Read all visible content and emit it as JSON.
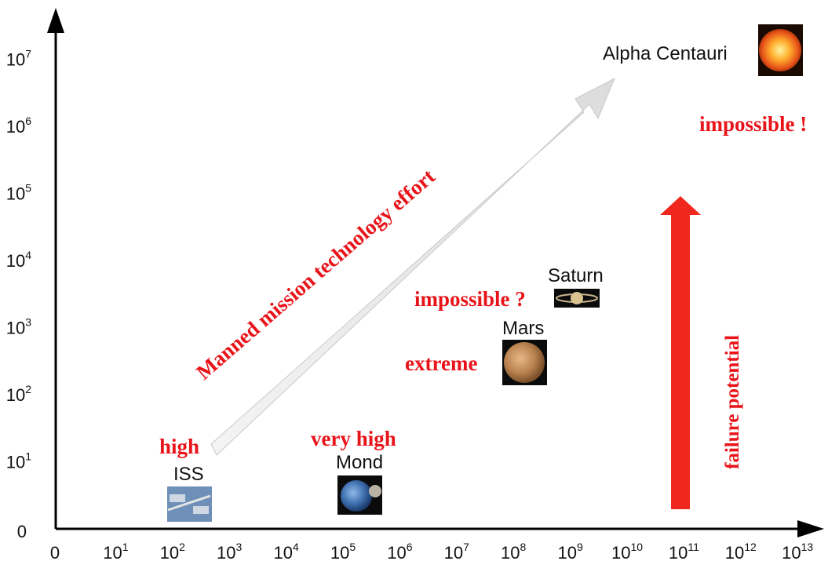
{
  "axes": {
    "x_ticks": [
      {
        "base": "0",
        "exp": ""
      },
      {
        "base": "10",
        "exp": "1"
      },
      {
        "base": "10",
        "exp": "2"
      },
      {
        "base": "10",
        "exp": "3"
      },
      {
        "base": "10",
        "exp": "4"
      },
      {
        "base": "10",
        "exp": "5"
      },
      {
        "base": "10",
        "exp": "6"
      },
      {
        "base": "10",
        "exp": "7"
      },
      {
        "base": "10",
        "exp": "8"
      },
      {
        "base": "10",
        "exp": "9"
      },
      {
        "base": "10",
        "exp": "10"
      },
      {
        "base": "10",
        "exp": "11"
      },
      {
        "base": "10",
        "exp": "12"
      },
      {
        "base": "10",
        "exp": "13"
      }
    ],
    "y_ticks": [
      {
        "base": "0",
        "exp": ""
      },
      {
        "base": "10",
        "exp": "1"
      },
      {
        "base": "10",
        "exp": "2"
      },
      {
        "base": "10",
        "exp": "3"
      },
      {
        "base": "10",
        "exp": "4"
      },
      {
        "base": "10",
        "exp": "5"
      },
      {
        "base": "10",
        "exp": "6"
      },
      {
        "base": "10",
        "exp": "7"
      }
    ],
    "color": "#000000"
  },
  "objects": {
    "iss": "ISS",
    "moon": "Mond",
    "mars": "Mars",
    "saturn": "Saturn",
    "alpha_centauri": "Alpha Centauri"
  },
  "ratings": {
    "high": "high",
    "very_high": "very high",
    "extreme": "extreme",
    "impossible_q": "impossible ?",
    "impossible_x": "impossible !"
  },
  "arrows": {
    "effort_label": "Manned mission technology effort",
    "failure_label": "failure potential"
  },
  "colors": {
    "accent_red": "#e8141a",
    "effort_arrow": "#e2e2e2"
  },
  "icons": [
    "iss-image",
    "moon-image",
    "mars-image",
    "saturn-image",
    "sun-image"
  ]
}
